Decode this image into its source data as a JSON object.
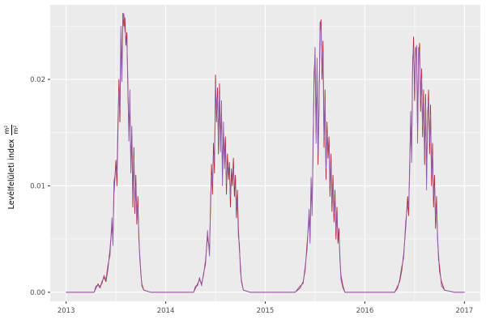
{
  "chart_data": {
    "type": "line",
    "title": "",
    "xlabel": "",
    "ylabel": {
      "text": "Levélfelületi index",
      "numerator": "m²",
      "denominator": "m²"
    },
    "legend": "none",
    "grid": true,
    "style": "ggplot",
    "panel_bg": "#ebebeb",
    "grid_color": "#ffffff",
    "tick_color": "#333333",
    "tick_label_color": "#4d4d4d",
    "xlim": [
      2012.84,
      2017.16
    ],
    "ylim": [
      -0.00085,
      0.027
    ],
    "x_ticks": [
      2013,
      2014,
      2015,
      2016,
      2017
    ],
    "x_tick_labels": [
      "2013",
      "2014",
      "2015",
      "2016",
      "2017"
    ],
    "x_minor_ticks": [
      2013.5,
      2014.5,
      2015.5,
      2016.5
    ],
    "y_ticks": [
      0,
      0.01,
      0.02
    ],
    "y_tick_labels": [
      "0.00",
      "0.01",
      "0.02"
    ],
    "y_minor_ticks": [
      0.005,
      0.015,
      0.025
    ],
    "x": [
      2013.0,
      2013.1,
      2013.2,
      2013.28,
      2013.3,
      2013.32,
      2013.34,
      2013.36,
      2013.38,
      2013.4,
      2013.42,
      2013.44,
      2013.46,
      2013.47,
      2013.48,
      2013.5,
      2013.51,
      2013.52,
      2013.53,
      2013.54,
      2013.55,
      2013.56,
      2013.57,
      2013.58,
      2013.59,
      2013.6,
      2013.61,
      2013.62,
      2013.63,
      2013.64,
      2013.65,
      2013.66,
      2013.67,
      2013.68,
      2013.69,
      2013.7,
      2013.71,
      2013.72,
      2013.73,
      2013.74,
      2013.75,
      2013.76,
      2013.78,
      2013.85,
      2014.0,
      2014.15,
      2014.28,
      2014.3,
      2014.32,
      2014.34,
      2014.36,
      2014.38,
      2014.4,
      2014.42,
      2014.44,
      2014.45,
      2014.46,
      2014.47,
      2014.48,
      2014.49,
      2014.5,
      2014.51,
      2014.52,
      2014.53,
      2014.54,
      2014.55,
      2014.56,
      2014.57,
      2014.58,
      2014.59,
      2014.6,
      2014.61,
      2014.62,
      2014.63,
      2014.64,
      2014.65,
      2014.66,
      2014.67,
      2014.68,
      2014.69,
      2014.7,
      2014.71,
      2014.72,
      2014.73,
      2014.74,
      2014.75,
      2014.76,
      2014.78,
      2014.85,
      2015.0,
      2015.15,
      2015.3,
      2015.35,
      2015.38,
      2015.4,
      2015.42,
      2015.44,
      2015.45,
      2015.46,
      2015.47,
      2015.48,
      2015.49,
      2015.5,
      2015.51,
      2015.52,
      2015.53,
      2015.54,
      2015.55,
      2015.56,
      2015.57,
      2015.58,
      2015.59,
      2015.6,
      2015.61,
      2015.62,
      2015.63,
      2015.64,
      2015.65,
      2015.66,
      2015.67,
      2015.68,
      2015.69,
      2015.7,
      2015.71,
      2015.72,
      2015.73,
      2015.74,
      2015.75,
      2015.76,
      2015.78,
      2015.8,
      2015.88,
      2016.0,
      2016.15,
      2016.3,
      2016.33,
      2016.35,
      2016.37,
      2016.39,
      2016.41,
      2016.43,
      2016.44,
      2016.45,
      2016.46,
      2016.47,
      2016.48,
      2016.49,
      2016.5,
      2016.51,
      2016.52,
      2016.53,
      2016.54,
      2016.55,
      2016.56,
      2016.57,
      2016.58,
      2016.59,
      2016.6,
      2016.61,
      2016.62,
      2016.63,
      2016.64,
      2016.65,
      2016.66,
      2016.67,
      2016.68,
      2016.69,
      2016.7,
      2016.71,
      2016.72,
      2016.73,
      2016.74,
      2016.75,
      2016.77,
      2016.8,
      2016.9,
      2017.0
    ],
    "series": [
      {
        "name": "series-red",
        "color": "#b2262e",
        "values": [
          0,
          0,
          0,
          0,
          0.0004,
          0.0008,
          0.0004,
          0.001,
          0.0014,
          0.001,
          0.0022,
          0.004,
          0.0062,
          0.005,
          0.0092,
          0.0124,
          0.01,
          0.015,
          0.02,
          0.016,
          0.0238,
          0.021,
          0.0262,
          0.025,
          0.0258,
          0.0232,
          0.0244,
          0.019,
          0.0152,
          0.0178,
          0.0124,
          0.0146,
          0.008,
          0.0136,
          0.0074,
          0.011,
          0.0064,
          0.009,
          0.005,
          0.0034,
          0.0018,
          0.0008,
          0.0002,
          0,
          0,
          0,
          0,
          0.0004,
          0.0008,
          0.0012,
          0.0008,
          0.0016,
          0.003,
          0.0052,
          0.004,
          0.0078,
          0.012,
          0.0092,
          0.014,
          0.0112,
          0.0204,
          0.016,
          0.0192,
          0.013,
          0.0196,
          0.0142,
          0.017,
          0.011,
          0.015,
          0.0126,
          0.0146,
          0.0092,
          0.013,
          0.0106,
          0.0122,
          0.008,
          0.0116,
          0.01,
          0.0126,
          0.009,
          0.011,
          0.007,
          0.0096,
          0.006,
          0.004,
          0.0026,
          0.001,
          0.0002,
          0,
          0,
          0,
          0,
          0.0004,
          0.001,
          0.002,
          0.0046,
          0.007,
          0.0052,
          0.01,
          0.008,
          0.013,
          0.0206,
          0.022,
          0.015,
          0.021,
          0.012,
          0.018,
          0.0246,
          0.0256,
          0.02,
          0.0236,
          0.0136,
          0.019,
          0.0106,
          0.016,
          0.0126,
          0.0146,
          0.009,
          0.013,
          0.0076,
          0.011,
          0.0066,
          0.0096,
          0.005,
          0.008,
          0.0046,
          0.006,
          0.003,
          0.0016,
          0.0006,
          0.0,
          0,
          0,
          0,
          0,
          0.0006,
          0.001,
          0.002,
          0.0036,
          0.006,
          0.009,
          0.0072,
          0.012,
          0.016,
          0.013,
          0.021,
          0.024,
          0.018,
          0.023,
          0.0224,
          0.015,
          0.022,
          0.0234,
          0.017,
          0.021,
          0.0146,
          0.019,
          0.012,
          0.0186,
          0.0106,
          0.016,
          0.019,
          0.013,
          0.0176,
          0.01,
          0.014,
          0.008,
          0.011,
          0.006,
          0.009,
          0.005,
          0.0036,
          0.002,
          0.001,
          0.0002,
          0,
          0
        ]
      },
      {
        "name": "series-purple",
        "color": "#8e5bab",
        "values": [
          0,
          0,
          0,
          0,
          0.0006,
          0.0006,
          0.0006,
          0.0008,
          0.0016,
          0.0012,
          0.0026,
          0.0034,
          0.007,
          0.0044,
          0.0104,
          0.0116,
          0.0112,
          0.0162,
          0.0188,
          0.0172,
          0.025,
          0.0198,
          0.0256,
          0.0262,
          0.0246,
          0.024,
          0.0236,
          0.02,
          0.0142,
          0.019,
          0.0112,
          0.0156,
          0.009,
          0.0126,
          0.0084,
          0.01,
          0.0072,
          0.008,
          0.0056,
          0.003,
          0.002,
          0.0006,
          0.0002,
          0,
          0,
          0,
          0,
          0.0006,
          0.0006,
          0.0014,
          0.0006,
          0.0018,
          0.0026,
          0.0058,
          0.0034,
          0.0086,
          0.011,
          0.0102,
          0.013,
          0.0122,
          0.0196,
          0.017,
          0.0182,
          0.0142,
          0.0186,
          0.0132,
          0.018,
          0.01,
          0.016,
          0.0116,
          0.0136,
          0.0102,
          0.012,
          0.0116,
          0.0112,
          0.009,
          0.0106,
          0.011,
          0.0116,
          0.01,
          0.01,
          0.008,
          0.0086,
          0.0052,
          0.0046,
          0.002,
          0.0012,
          0.0002,
          0,
          0,
          0,
          0,
          0.0006,
          0.0008,
          0.0024,
          0.004,
          0.0078,
          0.0046,
          0.0108,
          0.0072,
          0.014,
          0.0196,
          0.023,
          0.014,
          0.022,
          0.013,
          0.017,
          0.0254,
          0.0246,
          0.021,
          0.0226,
          0.0146,
          0.018,
          0.0116,
          0.015,
          0.0136,
          0.0136,
          0.01,
          0.012,
          0.0086,
          0.01,
          0.0074,
          0.0088,
          0.0058,
          0.0072,
          0.0052,
          0.0052,
          0.0034,
          0.0012,
          0.0004,
          0.0,
          0,
          0,
          0,
          0,
          0.0004,
          0.0012,
          0.0024,
          0.0032,
          0.0066,
          0.0082,
          0.008,
          0.0112,
          0.017,
          0.0122,
          0.022,
          0.023,
          0.0192,
          0.022,
          0.0232,
          0.014,
          0.023,
          0.0224,
          0.018,
          0.02,
          0.0156,
          0.018,
          0.0128,
          0.0176,
          0.0096,
          0.017,
          0.018,
          0.014,
          0.0166,
          0.011,
          0.013,
          0.009,
          0.01,
          0.007,
          0.008,
          0.0056,
          0.003,
          0.0026,
          0.0006,
          0.0002,
          0,
          0
        ]
      }
    ]
  }
}
